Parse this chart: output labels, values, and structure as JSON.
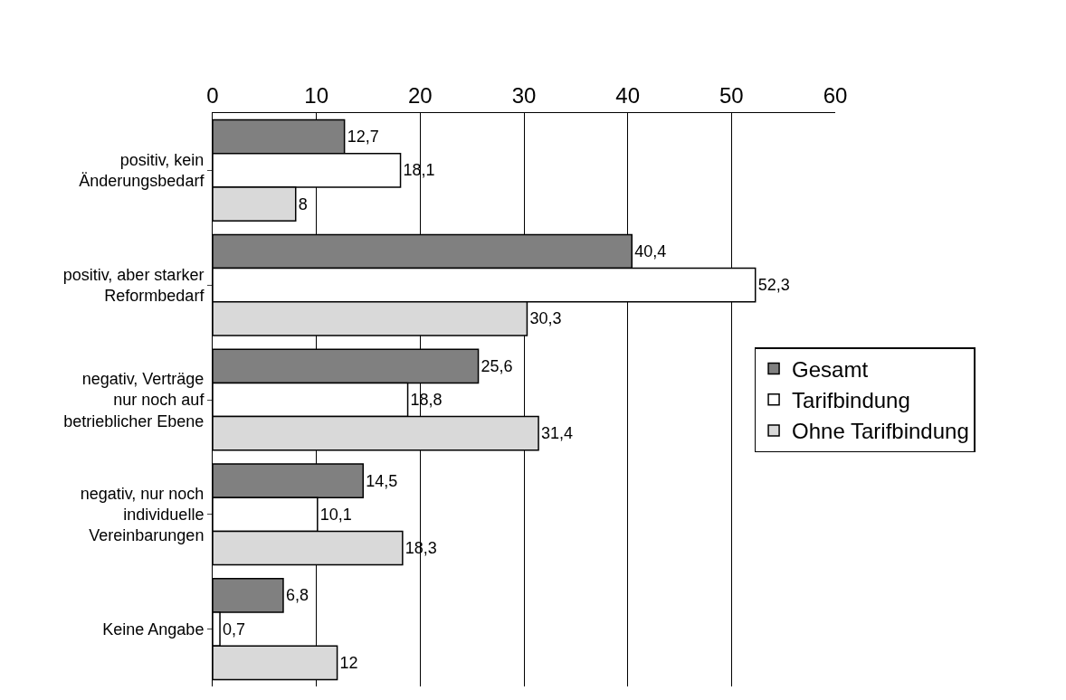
{
  "chart_data": {
    "type": "bar",
    "orientation": "horizontal",
    "categories": [
      "positiv, kein\nÄnderungsbedarf",
      "positiv, aber starker\nReformbedarf",
      "negativ, Verträge\nnur noch auf\nbetrieblicher Ebene",
      "negativ, nur noch\nindividuelle\nVereinbarungen",
      "Keine Angabe"
    ],
    "series": [
      {
        "name": "Gesamt",
        "color": "#808080",
        "values": [
          12.7,
          40.4,
          25.6,
          14.5,
          6.8
        ],
        "value_labels": [
          "12,7",
          "40,4",
          "25,6",
          "14,5",
          "6,8"
        ]
      },
      {
        "name": "Tarifbindung",
        "color": "#ffffff",
        "values": [
          18.1,
          52.3,
          18.8,
          10.1,
          0.7
        ],
        "value_labels": [
          "18,1",
          "52,3",
          "18,8",
          "10,1",
          "0,7"
        ]
      },
      {
        "name": "Ohne Tarifbindung",
        "color": "#d9d9d9",
        "values": [
          8,
          30.3,
          31.4,
          18.3,
          12
        ],
        "value_labels": [
          "8",
          "30,3",
          "31,4",
          "18,3",
          "12"
        ]
      }
    ],
    "xlim": [
      0,
      60
    ],
    "xticks": [
      0,
      10,
      20,
      30,
      40,
      50,
      60
    ],
    "grid": "x",
    "legend": "right"
  }
}
